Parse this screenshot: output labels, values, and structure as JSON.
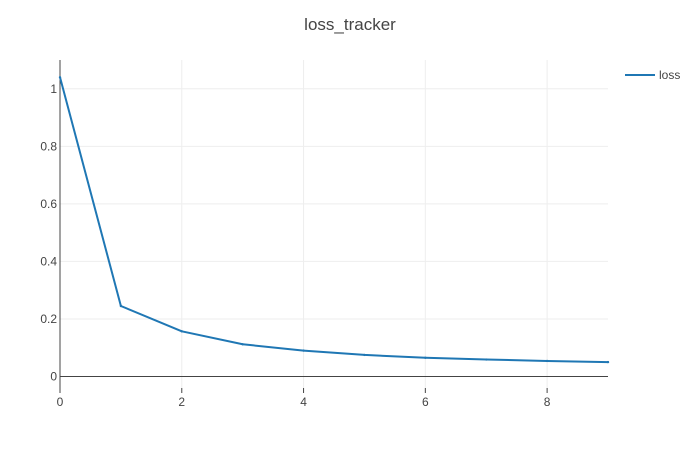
{
  "chart_data": {
    "type": "line",
    "title": "loss_tracker",
    "xlabel": "",
    "ylabel": "",
    "x": [
      0,
      1,
      2,
      3,
      4,
      5,
      6,
      7,
      8,
      9
    ],
    "series": [
      {
        "name": "loss",
        "color": "#1f77b4",
        "values": [
          1.04,
          0.245,
          0.157,
          0.112,
          0.09,
          0.075,
          0.065,
          0.059,
          0.054,
          0.05
        ]
      }
    ],
    "xlim": [
      0,
      9
    ],
    "ylim": [
      -0.04,
      1.1
    ],
    "x_ticks": [
      0,
      2,
      4,
      6,
      8
    ],
    "x_tick_labels": [
      "0",
      "2",
      "4",
      "6",
      "8"
    ],
    "y_ticks": [
      0,
      0.2,
      0.4,
      0.6,
      0.8,
      1
    ],
    "y_tick_labels": [
      "0",
      "0.2",
      "0.4",
      "0.6",
      "0.8",
      "1"
    ],
    "grid": true,
    "legend_position": "top-right"
  }
}
